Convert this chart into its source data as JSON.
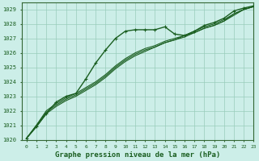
{
  "background_color": "#cceee8",
  "grid_color": "#99ccbb",
  "line_color": "#1a5e20",
  "xlabel": "Graphe pression niveau de la mer (hPa)",
  "xlabel_fontsize": 6.5,
  "ylim": [
    1020,
    1029.5
  ],
  "xlim": [
    -0.5,
    23
  ],
  "yticks": [
    1020,
    1021,
    1022,
    1023,
    1024,
    1025,
    1026,
    1027,
    1028,
    1029
  ],
  "xticks": [
    0,
    1,
    2,
    3,
    4,
    5,
    6,
    7,
    8,
    9,
    10,
    11,
    12,
    13,
    14,
    15,
    16,
    17,
    18,
    19,
    20,
    21,
    22,
    23
  ],
  "series_main": [
    1020.1,
    1020.9,
    1021.8,
    1022.6,
    1023.0,
    1023.2,
    1024.2,
    1025.3,
    1026.2,
    1027.0,
    1027.5,
    1027.6,
    1027.6,
    1027.6,
    1027.8,
    1027.3,
    1027.2,
    1027.5,
    1027.9,
    1028.1,
    1028.4,
    1028.9,
    1029.1,
    1029.25
  ],
  "series_smooth": [
    [
      1020.1,
      1021.0,
      1022.0,
      1022.5,
      1022.9,
      1023.2,
      1023.6,
      1024.0,
      1024.5,
      1025.1,
      1025.6,
      1026.0,
      1026.3,
      1026.5,
      1026.8,
      1027.0,
      1027.2,
      1027.5,
      1027.8,
      1028.0,
      1028.3,
      1028.7,
      1029.0,
      1029.2
    ],
    [
      1020.1,
      1021.0,
      1021.9,
      1022.4,
      1022.8,
      1023.1,
      1023.5,
      1023.9,
      1024.4,
      1025.0,
      1025.5,
      1025.9,
      1026.2,
      1026.4,
      1026.7,
      1026.9,
      1027.2,
      1027.4,
      1027.7,
      1027.9,
      1028.2,
      1028.7,
      1029.0,
      1029.2
    ],
    [
      1020.1,
      1020.9,
      1021.8,
      1022.3,
      1022.7,
      1023.0,
      1023.4,
      1023.8,
      1024.3,
      1024.9,
      1025.4,
      1025.8,
      1026.1,
      1026.4,
      1026.7,
      1026.9,
      1027.1,
      1027.4,
      1027.7,
      1027.9,
      1028.2,
      1028.6,
      1029.0,
      1029.2
    ]
  ],
  "marker_size": 2.5,
  "linewidth_main": 1.0,
  "linewidth_smooth": 0.8
}
